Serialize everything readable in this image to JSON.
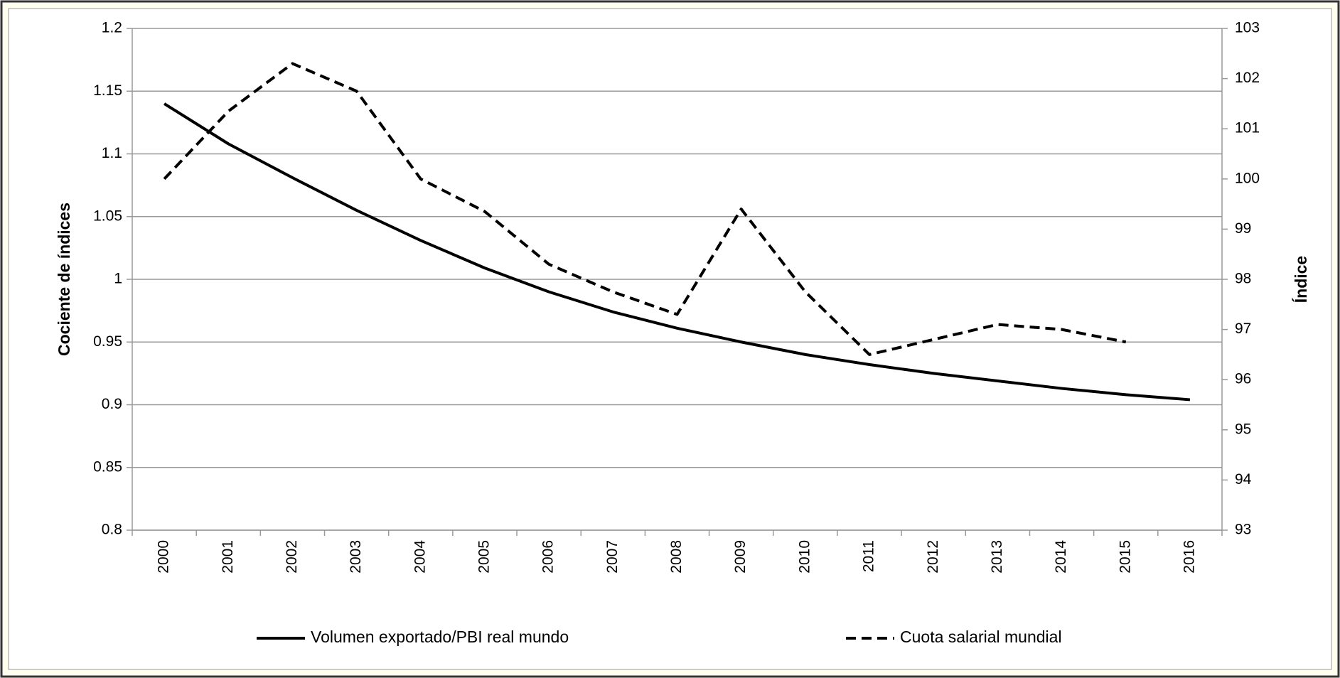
{
  "chart_data": {
    "type": "line",
    "categories": [
      "2000",
      "2001",
      "2002",
      "2003",
      "2004",
      "2005",
      "2006",
      "2007",
      "2008",
      "2009",
      "2010",
      "2011",
      "2012",
      "2013",
      "2014",
      "2015",
      "2016"
    ],
    "series": [
      {
        "name": "Volumen exportado/PBI real mundo",
        "color": "#000000",
        "dashed": false,
        "values": [
          1.14,
          1.108,
          1.081,
          1.055,
          1.031,
          1.009,
          0.99,
          0.974,
          0.961,
          0.95,
          0.94,
          0.932,
          0.925,
          0.919,
          0.913,
          0.908,
          0.904
        ]
      },
      {
        "name": "Cuota salarial mundial",
        "color": "#000000",
        "dashed": true,
        "axis": "y2",
        "values": [
          100,
          101.35,
          102.3,
          101.75,
          100,
          99.35,
          98.3,
          97.75,
          97.3,
          99.4,
          97.75,
          96.5,
          96.8,
          97.1,
          97.0,
          96.75,
          null
        ]
      }
    ],
    "ylabel": "Cociente de índices",
    "y2label": "Índice",
    "ylim": [
      0.8,
      1.2
    ],
    "yticks": [
      0.8,
      0.85,
      0.9,
      0.95,
      1,
      1.05,
      1.1,
      1.15,
      1.2
    ],
    "y2lim": [
      93,
      103
    ],
    "y2ticks": [
      93,
      94,
      95,
      96,
      97,
      98,
      99,
      100,
      101,
      102,
      103
    ],
    "grid": true,
    "legend": "bottom"
  }
}
